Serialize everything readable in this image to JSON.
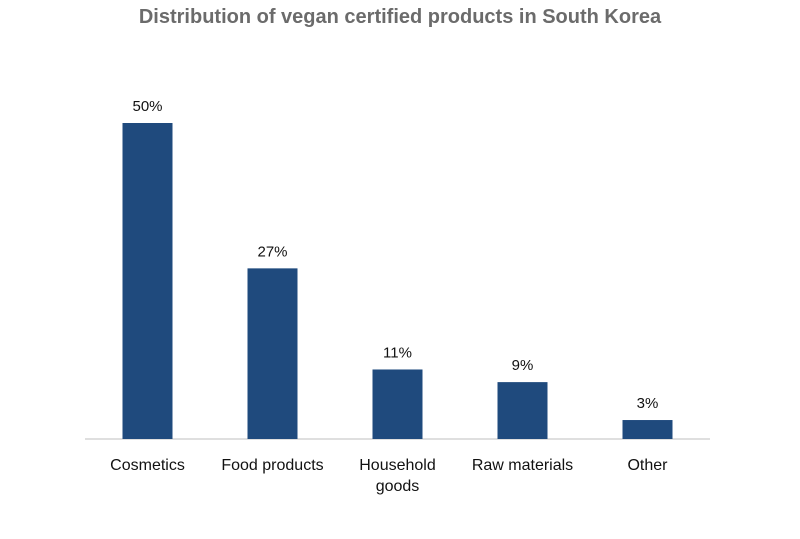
{
  "chart_data": {
    "type": "bar",
    "title": "Distribution of vegan certified products in South Korea",
    "categories": [
      "Cosmetics",
      "Food products",
      "Household goods",
      "Raw materials",
      "Other"
    ],
    "category_lines": [
      [
        "Cosmetics"
      ],
      [
        "Food products"
      ],
      [
        "Household",
        "goods"
      ],
      [
        "Raw materials"
      ],
      [
        "Other"
      ]
    ],
    "values": [
      50,
      27,
      11,
      9,
      3
    ],
    "value_labels": [
      "50%",
      "27%",
      "11%",
      "9%",
      "3%"
    ],
    "xlabel": "",
    "ylabel": "",
    "ylim": [
      0,
      50
    ],
    "grid": false,
    "legend": "none",
    "bar_color": "#1f4a7d"
  }
}
